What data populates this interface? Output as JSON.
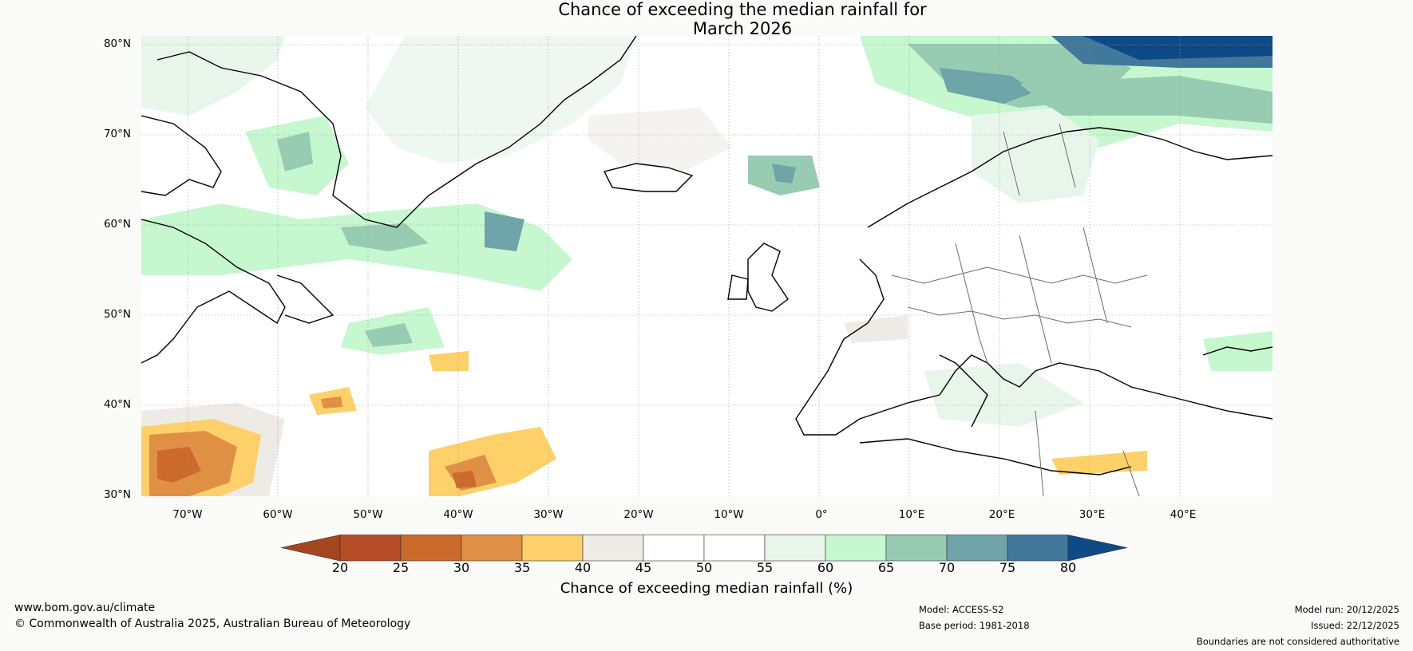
{
  "title_line1": "Chance of exceeding the median rainfall for",
  "title_line2": "March 2026",
  "latitude_labels": [
    "80°N",
    "70°N",
    "60°N",
    "50°N",
    "40°N",
    "30°N"
  ],
  "longitude_labels": [
    "70°W",
    "60°W",
    "50°W",
    "40°W",
    "30°W",
    "20°W",
    "10°W",
    "0°",
    "10°E",
    "20°E",
    "30°E",
    "40°E"
  ],
  "colorbar": {
    "label": "Chance of exceeding median rainfall (%)",
    "ticks": [
      "20",
      "25",
      "30",
      "35",
      "40",
      "45",
      "50",
      "55",
      "60",
      "65",
      "70",
      "75",
      "80"
    ],
    "under_color": "#a6461f",
    "over_color": "#0f4a86",
    "colors": [
      "#b44d25",
      "#cc6a2c",
      "#e09044",
      "#fdd06a",
      "#eeebe6",
      "#ffffff",
      "#ffffff",
      "#e8f5eb",
      "#c6f7cf",
      "#97cbb2",
      "#6fa4a8",
      "#41789c"
    ]
  },
  "footer": {
    "website": "www.bom.gov.au/climate",
    "copyright": "© Commonwealth of Australia 2025, Australian Bureau of Meteorology",
    "model": "Model: ACCESS-S2",
    "base_period": "Base period: 1981-2018",
    "model_run": "Model run: 20/12/2025",
    "issued": "Issued: 22/12/2025",
    "disclaimer": "Boundaries are not considered authoritative"
  }
}
